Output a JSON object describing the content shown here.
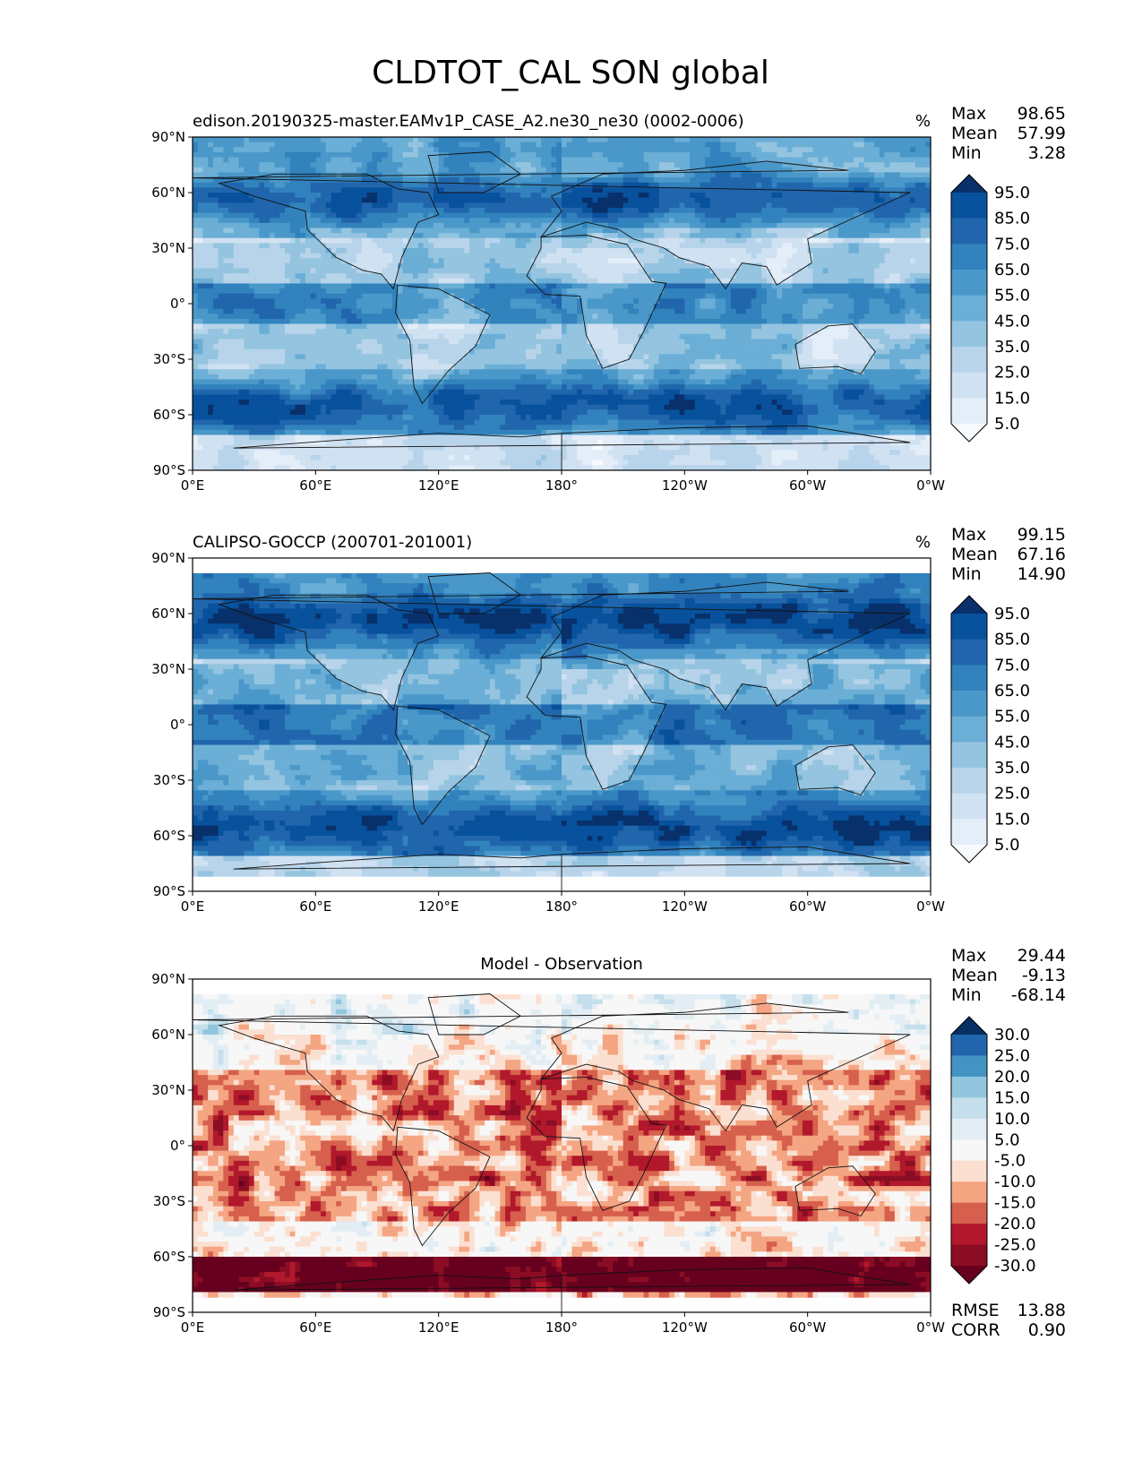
{
  "figure": {
    "suptitle": "CLDTOT_CAL SON global"
  },
  "panels": [
    {
      "id": "test",
      "left_title": "edison.20190325-master.EAMv1P_CASE_A2.ne30_ne30 (0002-0006)",
      "center_title": "",
      "units": "%",
      "stats": [
        {
          "label": "Max",
          "value": "98.65"
        },
        {
          "label": "Mean",
          "value": "57.99"
        },
        {
          "label": "Min",
          "value": "3.28"
        }
      ],
      "extra_stats": [],
      "colormap": "Blues",
      "colorbar": {
        "ticks": [
          "95.0",
          "85.0",
          "75.0",
          "65.0",
          "55.0",
          "45.0",
          "35.0",
          "25.0",
          "15.0",
          "5.0"
        ],
        "colors": [
          "#08306b",
          "#08519c",
          "#2166ac",
          "#3182bd",
          "#4a98c9",
          "#6baed6",
          "#94c4df",
          "#b7d4ea",
          "#d0e1f2",
          "#e3eef9",
          "#f7fbff"
        ]
      }
    },
    {
      "id": "reference",
      "left_title": "CALIPSO-GOCCP (200701-201001)",
      "center_title": "",
      "units": "%",
      "stats": [
        {
          "label": "Max",
          "value": "99.15"
        },
        {
          "label": "Mean",
          "value": "67.16"
        },
        {
          "label": "Min",
          "value": "14.90"
        }
      ],
      "extra_stats": [],
      "colormap": "Blues",
      "colorbar": {
        "ticks": [
          "95.0",
          "85.0",
          "75.0",
          "65.0",
          "55.0",
          "45.0",
          "35.0",
          "25.0",
          "15.0",
          "5.0"
        ],
        "colors": [
          "#08306b",
          "#08519c",
          "#2166ac",
          "#3182bd",
          "#4a98c9",
          "#6baed6",
          "#94c4df",
          "#b7d4ea",
          "#d0e1f2",
          "#e3eef9",
          "#f7fbff"
        ]
      }
    },
    {
      "id": "diff",
      "left_title": "",
      "center_title": "Model - Observation",
      "units": "",
      "stats": [
        {
          "label": "Max",
          "value": "29.44"
        },
        {
          "label": "Mean",
          "value": "-9.13"
        },
        {
          "label": "Min",
          "value": "-68.14"
        }
      ],
      "extra_stats": [
        {
          "label": "RMSE",
          "value": "13.88"
        },
        {
          "label": "CORR",
          "value": "0.90"
        }
      ],
      "colormap": "RdBu_r",
      "colorbar": {
        "ticks": [
          "30.0",
          "25.0",
          "20.0",
          "15.0",
          "10.0",
          "5.0",
          "-5.0",
          "-10.0",
          "-15.0",
          "-20.0",
          "-25.0",
          "-30.0"
        ],
        "colors": [
          "#053061",
          "#2166ac",
          "#4393c3",
          "#92c5de",
          "#c5dfec",
          "#e3eef4",
          "#f7f7f7",
          "#fbe0d2",
          "#f4a582",
          "#d6604d",
          "#b2182b",
          "#8b0d24",
          "#67001f"
        ]
      }
    }
  ],
  "axes": {
    "x_ticks": [
      "0°E",
      "60°E",
      "120°E",
      "180°",
      "120°W",
      "60°W",
      "0°W"
    ],
    "y_ticks": [
      "90°N",
      "60°N",
      "30°N",
      "0°",
      "30°S",
      "60°S",
      "90°S"
    ],
    "projection": "PlateCarree",
    "central_longitude": 180
  }
}
